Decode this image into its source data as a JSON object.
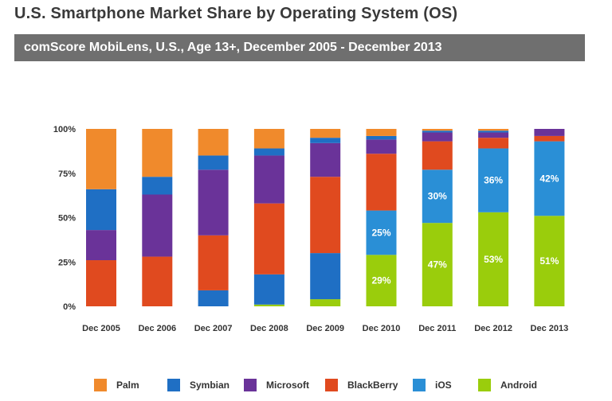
{
  "header": {
    "title": "U.S. Smartphone Market Share by Operating System (OS)",
    "subtitle": "comScore MobiLens, U.S., Age 13+, December 2005 - December 2013"
  },
  "colors": {
    "Palm": "#f08a2c",
    "Symbian": "#1f6fc4",
    "Microsoft": "#6a3399",
    "BlackBerry": "#e04a1f",
    "iOS": "#2a8fd6",
    "Android": "#9acd0c",
    "label_text": "#ffffff",
    "axis_text": "#333333"
  },
  "chart_data": {
    "type": "bar",
    "stacked": true,
    "title": "U.S. Smartphone Market Share by Operating System (OS)",
    "subtitle": "comScore MobiLens, U.S., Age 13+, December 2005 - December 2013",
    "xlabel": "",
    "ylabel": "",
    "ylim": [
      0,
      100
    ],
    "yticks": [
      "0%",
      "25%",
      "50%",
      "75%",
      "100%"
    ],
    "categories": [
      "Dec 2005",
      "Dec 2006",
      "Dec 2007",
      "Dec 2008",
      "Dec 2009",
      "Dec 2010",
      "Dec 2011",
      "Dec 2012",
      "Dec 2013"
    ],
    "series": [
      {
        "name": "Android",
        "values": [
          0,
          0,
          0,
          1,
          4,
          29,
          47,
          53,
          51
        ]
      },
      {
        "name": "Symbian",
        "values": [
          0,
          0,
          9,
          17,
          26,
          0,
          0,
          0,
          0
        ]
      },
      {
        "name": "iOS",
        "values": [
          0,
          0,
          0,
          0,
          0,
          25,
          30,
          36,
          42
        ]
      },
      {
        "name": "BlackBerry",
        "values": [
          26,
          28,
          31,
          40,
          43,
          32,
          16,
          6,
          3
        ]
      },
      {
        "name": "Microsoft",
        "values": [
          17,
          35,
          37,
          27,
          19,
          8,
          5,
          3,
          4
        ]
      },
      {
        "name": "Symbian",
        "values": [
          23,
          10,
          8,
          4,
          3,
          2,
          1,
          1,
          0
        ]
      },
      {
        "name": "Palm",
        "values": [
          34,
          27,
          15,
          11,
          5,
          4,
          1,
          1,
          0
        ]
      }
    ],
    "data_labels": [
      {
        "category": "Dec 2010",
        "series": "Android",
        "text": "29%"
      },
      {
        "category": "Dec 2010",
        "series": "iOS",
        "text": "25%"
      },
      {
        "category": "Dec 2011",
        "series": "Android",
        "text": "47%"
      },
      {
        "category": "Dec 2011",
        "series": "iOS",
        "text": "30%"
      },
      {
        "category": "Dec 2012",
        "series": "Android",
        "text": "53%"
      },
      {
        "category": "Dec 2012",
        "series": "iOS",
        "text": "36%"
      },
      {
        "category": "Dec 2013",
        "series": "Android",
        "text": "51%"
      },
      {
        "category": "Dec 2013",
        "series": "iOS",
        "text": "42%"
      }
    ],
    "legend": {
      "position": "bottom",
      "items": [
        "Palm",
        "Symbian",
        "Microsoft",
        "BlackBerry",
        "iOS",
        "Android"
      ]
    }
  }
}
